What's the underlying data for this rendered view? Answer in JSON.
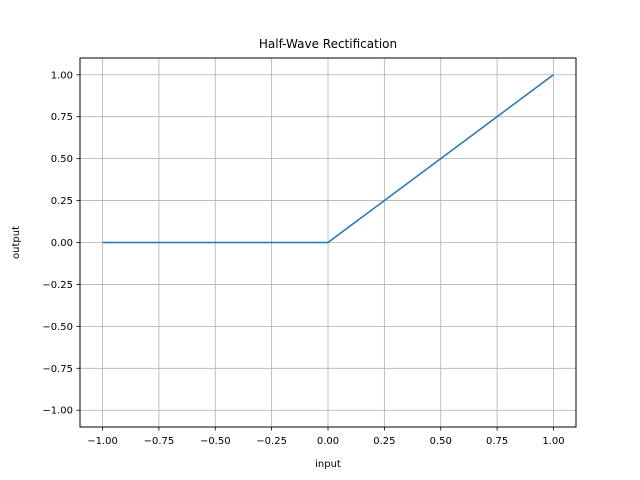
{
  "chart_data": {
    "type": "line",
    "title": "Half-Wave Rectification",
    "xlabel": "input",
    "ylabel": "output",
    "xlim": [
      -1.1,
      1.1
    ],
    "ylim": [
      -1.1,
      1.1
    ],
    "xticks": [
      -1.0,
      -0.75,
      -0.5,
      -0.25,
      0.0,
      0.25,
      0.5,
      0.75,
      1.0
    ],
    "xtick_labels": [
      "−1.00",
      "−0.75",
      "−0.50",
      "−0.25",
      "0.00",
      "0.25",
      "0.50",
      "0.75",
      "1.00"
    ],
    "yticks": [
      -1.0,
      -0.75,
      -0.5,
      -0.25,
      0.0,
      0.25,
      0.5,
      0.75,
      1.0
    ],
    "ytick_labels": [
      "−1.00",
      "−0.75",
      "−0.50",
      "−0.25",
      "0.00",
      "0.25",
      "0.50",
      "0.75",
      "1.00"
    ],
    "grid": true,
    "series": [
      {
        "color": "#1f77b4",
        "x": [
          -1.0,
          0.0,
          1.0
        ],
        "y": [
          0.0,
          0.0,
          1.0
        ]
      }
    ]
  }
}
